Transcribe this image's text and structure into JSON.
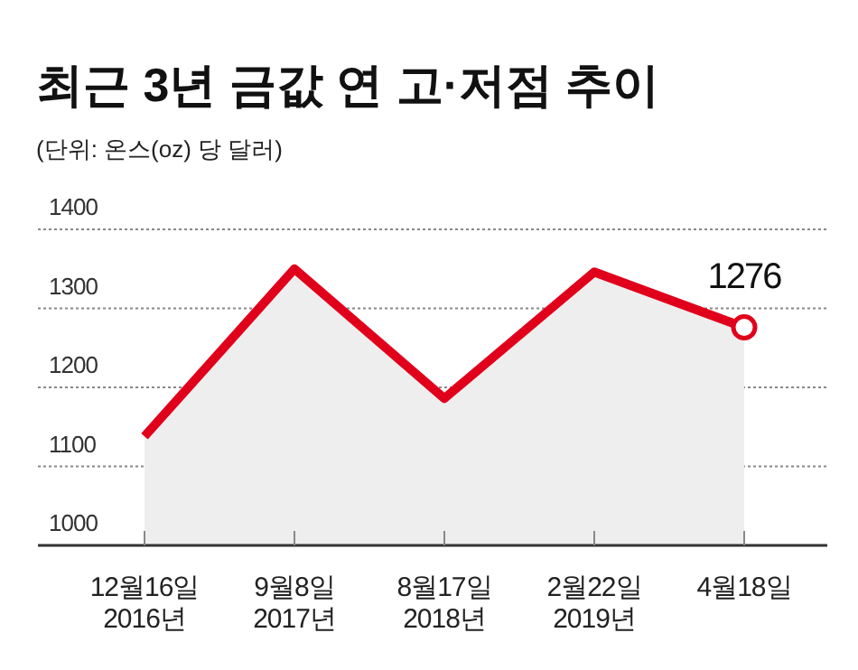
{
  "chart_data": {
    "type": "area",
    "title": "최근 3년 금값 연 고·저점 추이",
    "subtitle": "(단위: 온스(oz) 당 달러)",
    "categories": [
      "12월16일\n2016년",
      "9월8일\n2017년",
      "8월17일\n2018년",
      "2월22일\n2019년",
      "4월18일"
    ],
    "series": [
      {
        "color": "#e0001b",
        "values": [
          1138,
          1350,
          1186,
          1346,
          1276
        ]
      }
    ],
    "ylim": [
      1000,
      1400
    ],
    "yticks": [
      1000,
      1100,
      1200,
      1300,
      1400
    ],
    "grid": "y",
    "marker": "none",
    "line_style": "solid",
    "annotations": [
      {
        "text": "1276",
        "x": "4월18일",
        "y": 1276
      }
    ]
  }
}
